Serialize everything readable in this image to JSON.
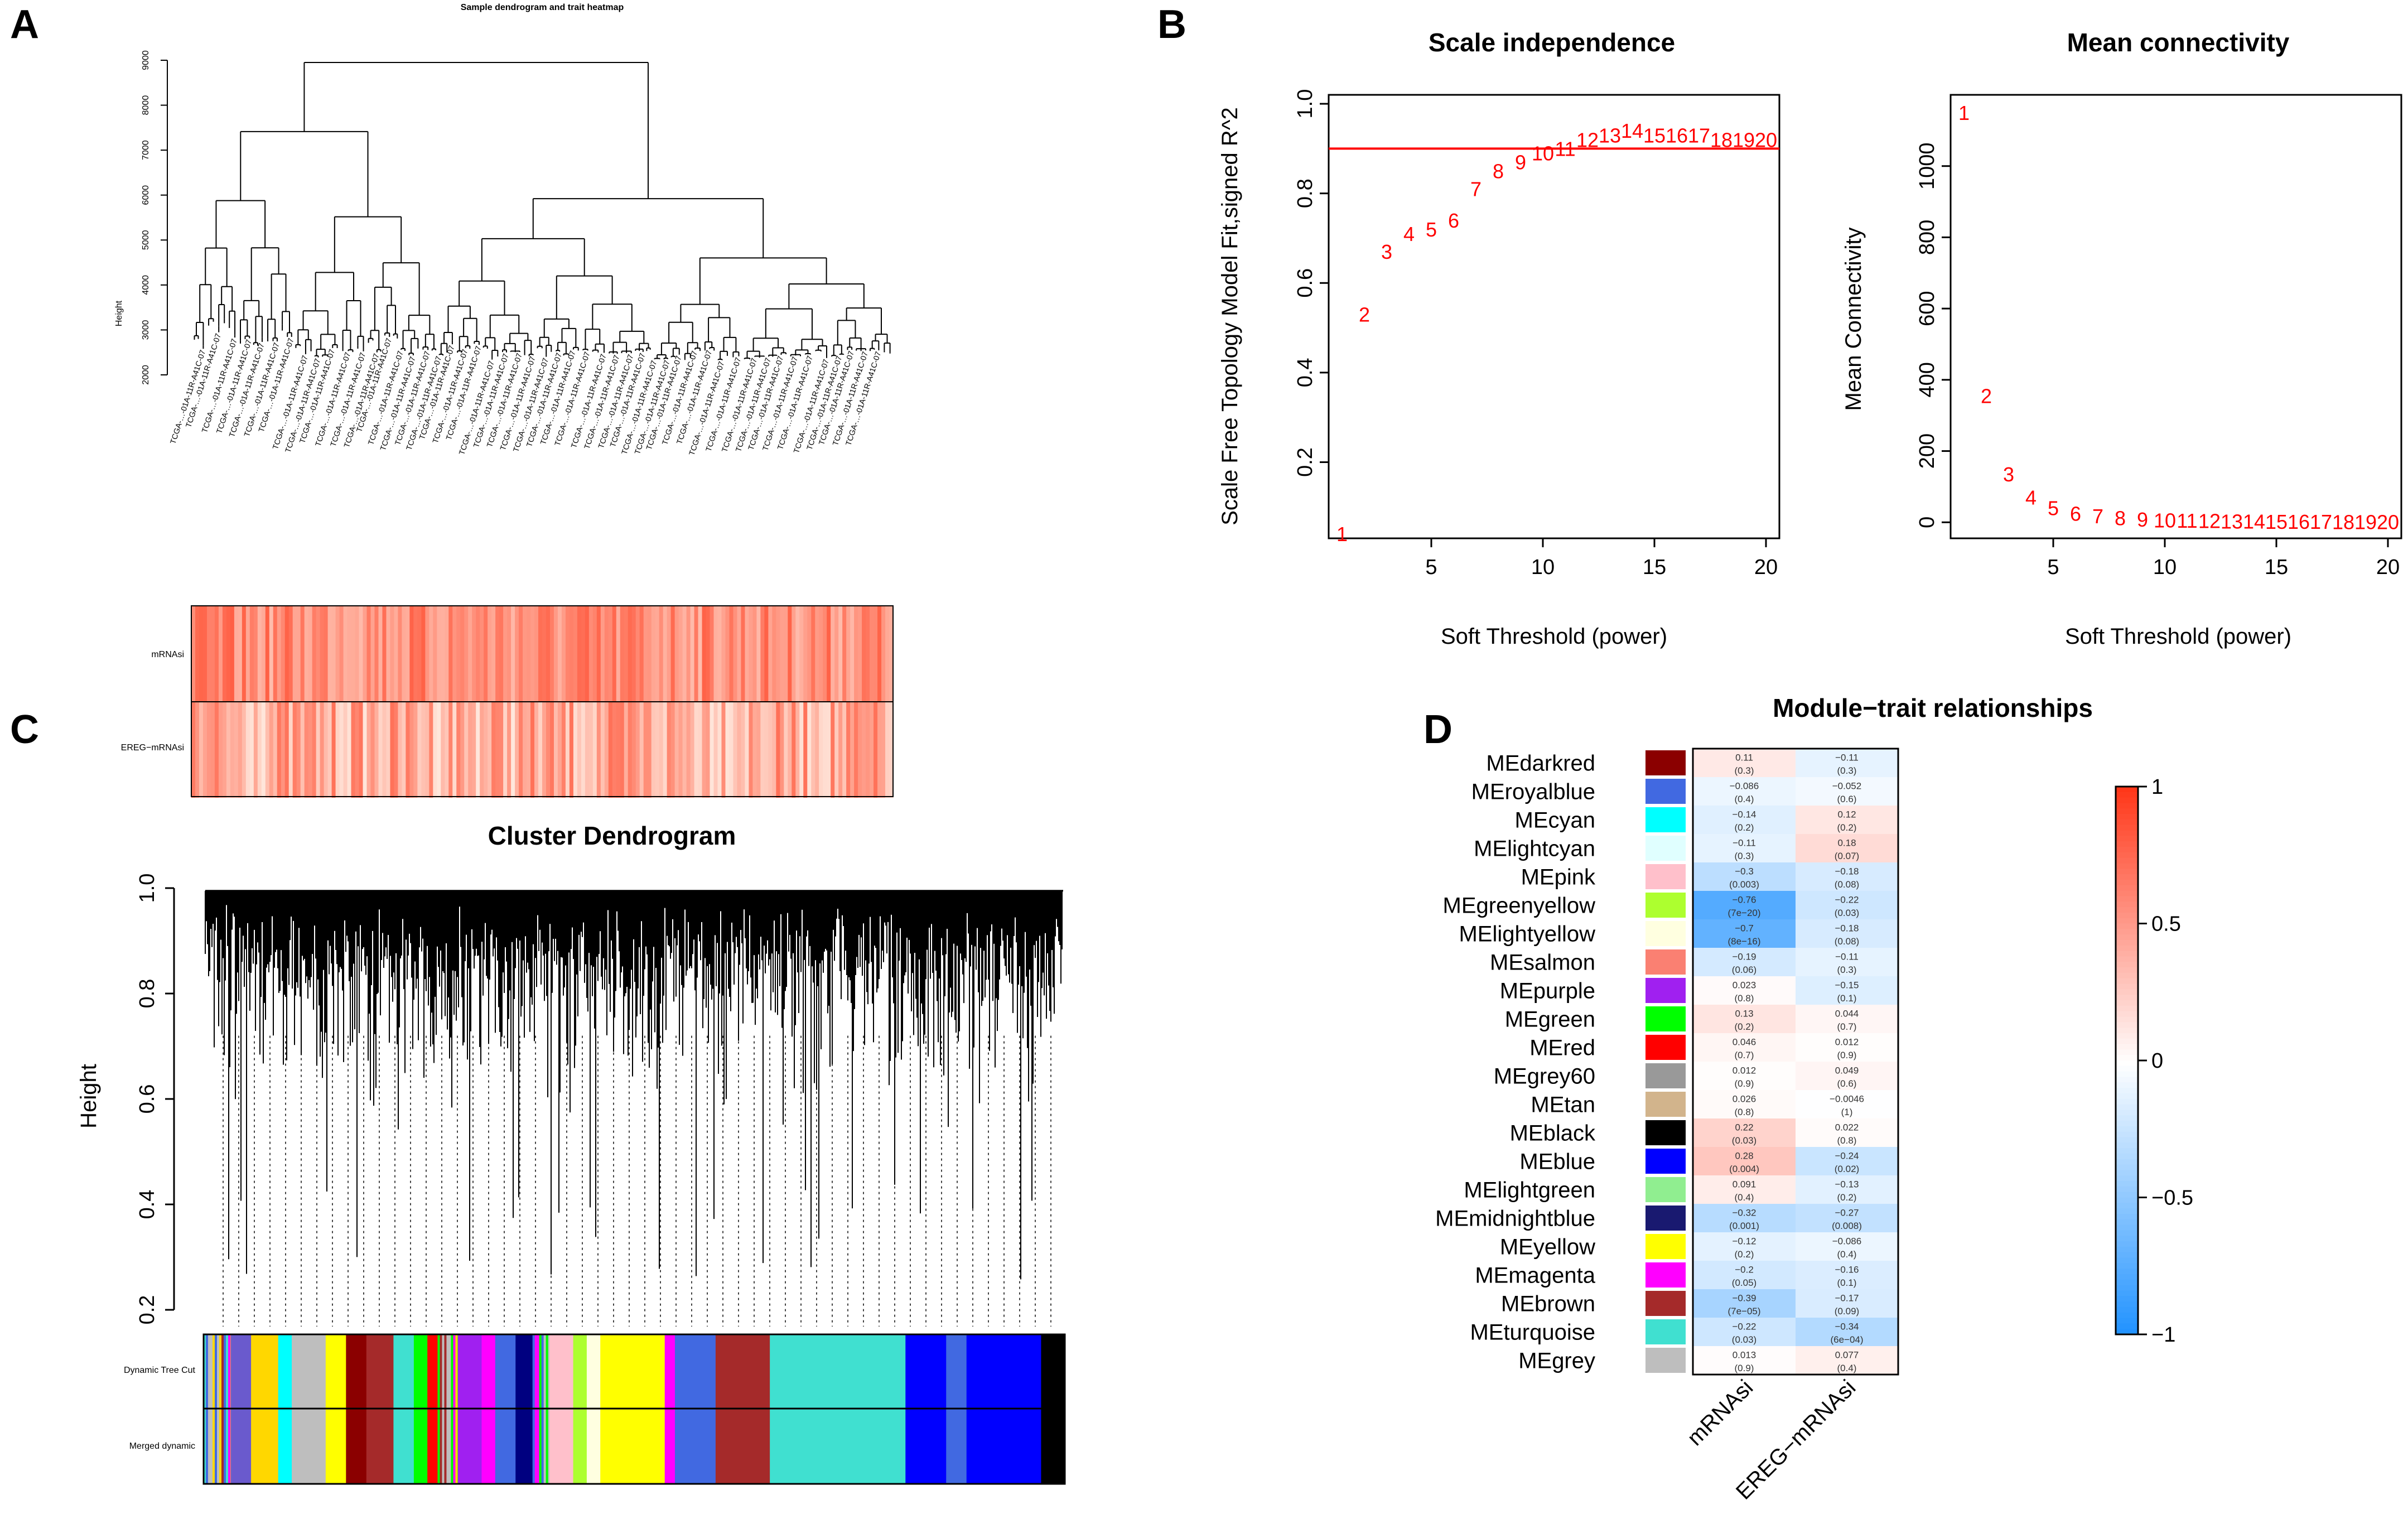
{
  "panel_labels": {
    "a": "A",
    "b": "B",
    "c": "C",
    "d": "D"
  },
  "chart_data": [
    {
      "id": "A",
      "type": "dendrogram-heatmap",
      "title": "Sample dendrogram and trait heatmap",
      "ylabel": "Height",
      "ylim": [
        2000,
        9000
      ],
      "yticks": [
        2000,
        3000,
        4000,
        5000,
        6000,
        7000,
        8000,
        9000
      ],
      "traits": [
        "mRNAsi",
        "EREG−mRNAsi"
      ],
      "sample_label_example": "TCGA-…-01A-11R-A41C-07"
    },
    {
      "id": "B1",
      "type": "scatter",
      "title": "Scale independence",
      "xlabel": "Soft Threshold (power)",
      "ylabel": "Scale Free Topology Model Fit,signed R^2",
      "xlim": [
        0.4,
        20.6
      ],
      "ylim": [
        0.03,
        1.02
      ],
      "xticks": [
        5,
        10,
        15,
        20
      ],
      "yticks": [
        0.2,
        0.4,
        0.6,
        0.8,
        1.0
      ],
      "threshold": 0.9,
      "x": [
        1,
        2,
        3,
        4,
        5,
        6,
        7,
        8,
        9,
        10,
        11,
        12,
        13,
        14,
        15,
        16,
        17,
        18,
        19,
        20
      ],
      "y": [
        0.04,
        0.53,
        0.67,
        0.71,
        0.72,
        0.74,
        0.81,
        0.85,
        0.87,
        0.89,
        0.9,
        0.92,
        0.93,
        0.94,
        0.93,
        0.93,
        0.93,
        0.92,
        0.92,
        0.92
      ]
    },
    {
      "id": "B2",
      "type": "scatter",
      "title": "Mean connectivity",
      "xlabel": "Soft Threshold (power)",
      "ylabel": "Mean Connectivity",
      "xlim": [
        0.4,
        20.6
      ],
      "ylim": [
        -45,
        1200
      ],
      "xticks": [
        5,
        10,
        15,
        20
      ],
      "yticks": [
        0,
        200,
        400,
        600,
        800,
        1000
      ],
      "x": [
        1,
        2,
        3,
        4,
        5,
        6,
        7,
        8,
        9,
        10,
        11,
        12,
        13,
        14,
        15,
        16,
        17,
        18,
        19,
        20
      ],
      "y": [
        1150,
        355,
        135,
        70,
        40,
        25,
        18,
        12,
        8,
        6,
        5,
        4,
        3,
        3,
        2,
        2,
        2,
        1,
        1,
        1
      ]
    },
    {
      "id": "C",
      "type": "dendrogram",
      "title": "Cluster Dendrogram",
      "ylabel": "Height",
      "ylim": [
        0.2,
        1.0
      ],
      "yticks": [
        0.2,
        0.4,
        0.6,
        0.8,
        1.0
      ],
      "color_rows": [
        "Dynamic Tree Cut",
        "Merged dynamic"
      ]
    },
    {
      "id": "D",
      "type": "heatmap",
      "title": "Module−trait relationships",
      "columns": [
        "mRNAsi",
        "EREG−mRNAsi"
      ],
      "colorbar_ticks": [
        {
          "v": 1,
          "t": "1"
        },
        {
          "v": 0.5,
          "t": "0.5"
        },
        {
          "v": 0,
          "t": "0"
        },
        {
          "v": -0.5,
          "t": "−0.5"
        },
        {
          "v": -1,
          "t": "−1"
        }
      ],
      "rows": [
        {
          "module": "MEdarkred",
          "color": "#8b0000",
          "values": [
            0.11,
            -0.11
          ],
          "labels": [
            "0.11",
            "−0.11"
          ],
          "pvalues": [
            "(0.3)",
            "(0.3)"
          ]
        },
        {
          "module": "MEroyalblue",
          "color": "#4169e1",
          "values": [
            -0.086,
            -0.052
          ],
          "labels": [
            "−0.086",
            "−0.052"
          ],
          "pvalues": [
            "(0.4)",
            "(0.6)"
          ]
        },
        {
          "module": "MEcyan",
          "color": "#00ffff",
          "values": [
            -0.14,
            0.12
          ],
          "labels": [
            "−0.14",
            "0.12"
          ],
          "pvalues": [
            "(0.2)",
            "(0.2)"
          ]
        },
        {
          "module": "MElightcyan",
          "color": "#e0ffff",
          "values": [
            -0.11,
            0.18
          ],
          "labels": [
            "−0.11",
            "0.18"
          ],
          "pvalues": [
            "(0.3)",
            "(0.07)"
          ]
        },
        {
          "module": "MEpink",
          "color": "#ffc0cb",
          "values": [
            -0.3,
            -0.18
          ],
          "labels": [
            "−0.3",
            "−0.18"
          ],
          "pvalues": [
            "(0.003)",
            "(0.08)"
          ]
        },
        {
          "module": "MEgreenyellow",
          "color": "#adff2f",
          "values": [
            -0.76,
            -0.22
          ],
          "labels": [
            "−0.76",
            "−0.22"
          ],
          "pvalues": [
            "(7e−20)",
            "(0.03)"
          ]
        },
        {
          "module": "MElightyellow",
          "color": "#ffffe0",
          "values": [
            -0.7,
            -0.18
          ],
          "labels": [
            "−0.7",
            "−0.18"
          ],
          "pvalues": [
            "(8e−16)",
            "(0.08)"
          ]
        },
        {
          "module": "MEsalmon",
          "color": "#fa8072",
          "values": [
            -0.19,
            -0.11
          ],
          "labels": [
            "−0.19",
            "−0.11"
          ],
          "pvalues": [
            "(0.06)",
            "(0.3)"
          ]
        },
        {
          "module": "MEpurple",
          "color": "#a020f0",
          "values": [
            0.023,
            -0.15
          ],
          "labels": [
            "0.023",
            "−0.15"
          ],
          "pvalues": [
            "(0.8)",
            "(0.1)"
          ]
        },
        {
          "module": "MEgreen",
          "color": "#00ff00",
          "values": [
            0.13,
            0.044
          ],
          "labels": [
            "0.13",
            "0.044"
          ],
          "pvalues": [
            "(0.2)",
            "(0.7)"
          ]
        },
        {
          "module": "MEred",
          "color": "#ff0000",
          "values": [
            0.046,
            0.012
          ],
          "labels": [
            "0.046",
            "0.012"
          ],
          "pvalues": [
            "(0.7)",
            "(0.9)"
          ]
        },
        {
          "module": "MEgrey60",
          "color": "#999999",
          "values": [
            0.012,
            0.049
          ],
          "labels": [
            "0.012",
            "0.049"
          ],
          "pvalues": [
            "(0.9)",
            "(0.6)"
          ]
        },
        {
          "module": "MEtan",
          "color": "#d2b48c",
          "values": [
            0.026,
            -0.0046
          ],
          "labels": [
            "0.026",
            "−0.0046"
          ],
          "pvalues": [
            "(0.8)",
            "(1)"
          ]
        },
        {
          "module": "MEblack",
          "color": "#000000",
          "values": [
            0.22,
            0.022
          ],
          "labels": [
            "0.22",
            "0.022"
          ],
          "pvalues": [
            "(0.03)",
            "(0.8)"
          ]
        },
        {
          "module": "MEblue",
          "color": "#0000ff",
          "values": [
            0.28,
            -0.24
          ],
          "labels": [
            "0.28",
            "−0.24"
          ],
          "pvalues": [
            "(0.004)",
            "(0.02)"
          ]
        },
        {
          "module": "MElightgreen",
          "color": "#90ee90",
          "values": [
            0.091,
            -0.13
          ],
          "labels": [
            "0.091",
            "−0.13"
          ],
          "pvalues": [
            "(0.4)",
            "(0.2)"
          ]
        },
        {
          "module": "MEmidnightblue",
          "color": "#191970",
          "values": [
            -0.32,
            -0.27
          ],
          "labels": [
            "−0.32",
            "−0.27"
          ],
          "pvalues": [
            "(0.001)",
            "(0.008)"
          ]
        },
        {
          "module": "MEyellow",
          "color": "#ffff00",
          "values": [
            -0.12,
            -0.086
          ],
          "labels": [
            "−0.12",
            "−0.086"
          ],
          "pvalues": [
            "(0.2)",
            "(0.4)"
          ]
        },
        {
          "module": "MEmagenta",
          "color": "#ff00ff",
          "values": [
            -0.2,
            -0.16
          ],
          "labels": [
            "−0.2",
            "−0.16"
          ],
          "pvalues": [
            "(0.05)",
            "(0.1)"
          ]
        },
        {
          "module": "MEbrown",
          "color": "#a52a2a",
          "values": [
            -0.39,
            -0.17
          ],
          "labels": [
            "−0.39",
            "−0.17"
          ],
          "pvalues": [
            "(7e−05)",
            "(0.09)"
          ]
        },
        {
          "module": "MEturquoise",
          "color": "#40e0d0",
          "values": [
            -0.22,
            -0.34
          ],
          "labels": [
            "−0.22",
            "−0.34"
          ],
          "pvalues": [
            "(0.03)",
            "(6e−04)"
          ]
        },
        {
          "module": "MEgrey",
          "color": "#bebebe",
          "values": [
            0.013,
            0.077
          ],
          "labels": [
            "0.013",
            "0.077"
          ],
          "pvalues": [
            "(0.9)",
            "(0.4)"
          ]
        }
      ]
    }
  ]
}
